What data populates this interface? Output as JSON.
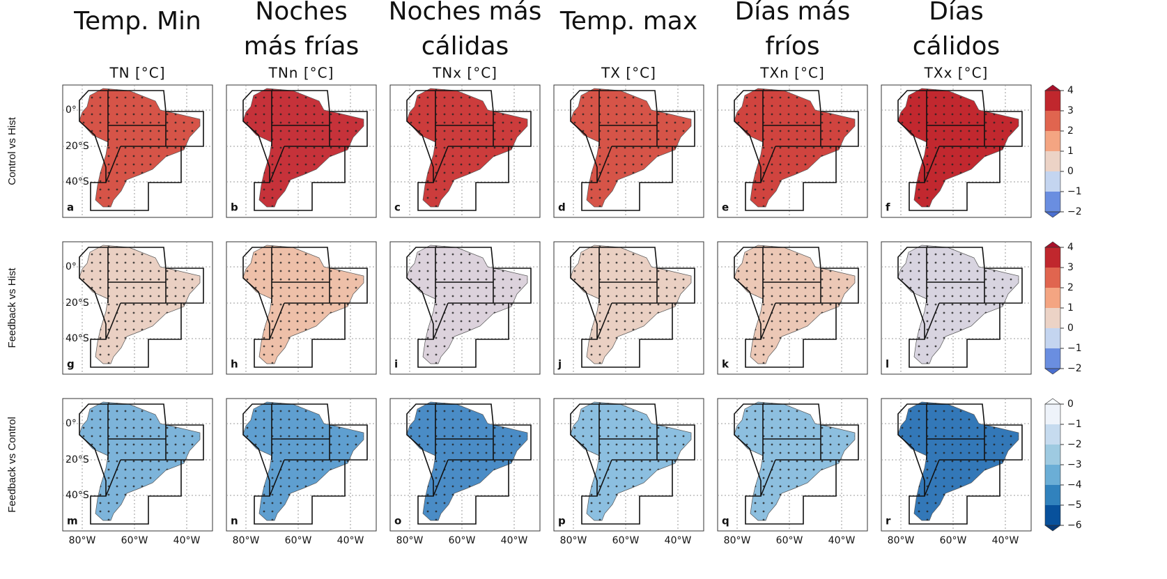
{
  "columns": [
    {
      "title_lines": [
        "Temp. Min"
      ],
      "subtitle": "TN [°C]"
    },
    {
      "title_lines": [
        "Noches",
        "más frías"
      ],
      "subtitle": "TNn [°C]"
    },
    {
      "title_lines": [
        "Noches más",
        "cálidas"
      ],
      "subtitle": "TNx [°C]"
    },
    {
      "title_lines": [
        "Temp. max"
      ],
      "subtitle": "TX [°C]"
    },
    {
      "title_lines": [
        "Días más",
        "fríos"
      ],
      "subtitle": "TXn [°C]"
    },
    {
      "title_lines": [
        "Días",
        "cálidos"
      ],
      "subtitle": "TXx [°C]"
    }
  ],
  "lat_ticks": [
    "0°",
    "20°S",
    "40°S"
  ],
  "lon_ticks": [
    "80°W",
    "60°W",
    "40°W"
  ],
  "rows": [
    {
      "label": "Control vs Hist",
      "panels": [
        {
          "letter": "a",
          "color": "#d65448"
        },
        {
          "letter": "b",
          "color": "#c6323a"
        },
        {
          "letter": "c",
          "color": "#cc3c3c"
        },
        {
          "letter": "d",
          "color": "#d65448"
        },
        {
          "letter": "e",
          "color": "#d0443f"
        },
        {
          "letter": "f",
          "color": "#c2282f"
        }
      ],
      "colorbar": {
        "lim": [
          -2,
          4
        ],
        "ticks": [
          4,
          3,
          2,
          1,
          0,
          {
            "value": -1,
            "label": "−1"
          },
          {
            "value": -2,
            "label": "−2"
          }
        ],
        "colors": [
          "#6a8ee0",
          "#c4d5f0",
          "#ecd3c6",
          "#f4a582",
          "#e0654f",
          "#c0272d"
        ],
        "ext_colors": [
          "#4a6fd0",
          "#a8102a"
        ]
      }
    },
    {
      "label": "Feedback vs Hist",
      "panels": [
        {
          "letter": "g",
          "color": "#ead0c3"
        },
        {
          "letter": "h",
          "color": "#eec0a9"
        },
        {
          "letter": "i",
          "color": "#dcd2dc"
        },
        {
          "letter": "j",
          "color": "#ead0c3"
        },
        {
          "letter": "k",
          "color": "#ecc8b6"
        },
        {
          "letter": "l",
          "color": "#d8d4e0"
        }
      ],
      "colorbar": {
        "lim": [
          -2,
          4
        ],
        "ticks": [
          4,
          3,
          2,
          1,
          0,
          {
            "value": -1,
            "label": "−1"
          },
          {
            "value": -2,
            "label": "−2"
          }
        ],
        "colors": [
          "#6a8ee0",
          "#c4d5f0",
          "#ecd3c6",
          "#f4a582",
          "#e0654f",
          "#c0272d"
        ],
        "ext_colors": [
          "#4a6fd0",
          "#a8102a"
        ]
      }
    },
    {
      "label": "Feedback vs Control",
      "panels": [
        {
          "letter": "m",
          "color": "#7db4da"
        },
        {
          "letter": "n",
          "color": "#5f9fd0"
        },
        {
          "letter": "o",
          "color": "#4a8cc6"
        },
        {
          "letter": "p",
          "color": "#8cbfe0"
        },
        {
          "letter": "q",
          "color": "#8dbfdf"
        },
        {
          "letter": "r",
          "color": "#3378b8"
        }
      ],
      "colorbar": {
        "lim": [
          -6,
          0
        ],
        "ticks": [
          0,
          {
            "value": -1,
            "label": "−1"
          },
          {
            "value": -2,
            "label": "−2"
          },
          {
            "value": -3,
            "label": "−3"
          },
          {
            "value": -4,
            "label": "−4"
          },
          {
            "value": -5,
            "label": "−5"
          },
          {
            "value": -6,
            "label": "−6"
          }
        ],
        "colors": [
          "#08519c",
          "#3182bd",
          "#6baed6",
          "#9ecae1",
          "#c6dbef",
          "#eef3fa"
        ],
        "ext_colors": [
          "#063a78",
          "#f7fbff"
        ]
      }
    }
  ]
}
